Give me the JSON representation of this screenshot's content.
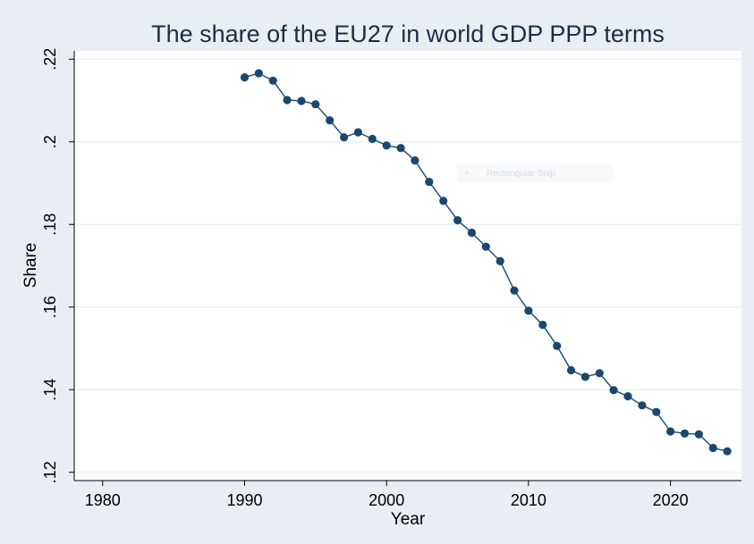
{
  "chart_data": {
    "type": "line",
    "title": "The share of the EU27 in world GDP PPP terms",
    "xlabel": "Year",
    "ylabel": "Share",
    "xlim": [
      1978,
      2025
    ],
    "ylim": [
      0.118,
      0.222
    ],
    "x_ticks": [
      1980,
      1990,
      2000,
      2010,
      2020
    ],
    "x_tick_labels": [
      "1980",
      "1990",
      "2000",
      "2010",
      "2020"
    ],
    "y_ticks": [
      0.12,
      0.14,
      0.16,
      0.18,
      0.2,
      0.22
    ],
    "y_tick_labels": [
      ".12",
      ".14",
      ".16",
      ".18",
      ".2",
      ".22"
    ],
    "grid": true,
    "legend": "none",
    "colors": {
      "background": "#e8eef3",
      "plot_background": "#ffffff",
      "grid": "#eaf0f4",
      "line": "#1a476f",
      "marker": "#1a476f",
      "title": "#1a2e45"
    },
    "series": [
      {
        "x": [
          1990,
          1991,
          1992,
          1993,
          1994,
          1995,
          1996,
          1997,
          1998,
          1999,
          2000,
          2001,
          2002,
          2003,
          2004,
          2005,
          2006,
          2007,
          2008,
          2009,
          2010,
          2011,
          2012,
          2013,
          2014,
          2015,
          2016,
          2017,
          2018,
          2019,
          2020,
          2021,
          2022,
          2023,
          2024
        ],
        "values": [
          0.2156,
          0.2166,
          0.2148,
          0.2101,
          0.2099,
          0.2091,
          0.2052,
          0.2011,
          0.2023,
          0.2007,
          0.1991,
          0.1985,
          0.1955,
          0.1903,
          0.1857,
          0.181,
          0.178,
          0.1746,
          0.1711,
          0.164,
          0.1591,
          0.1557,
          0.1506,
          0.1447,
          0.1431,
          0.144,
          0.1399,
          0.1384,
          0.1362,
          0.1346,
          0.1299,
          0.1294,
          0.1292,
          0.1259,
          0.1251
        ]
      }
    ]
  },
  "overlay": {
    "ghost_label": "Rectangular Snip",
    "ghost_icon": "close-icon"
  }
}
